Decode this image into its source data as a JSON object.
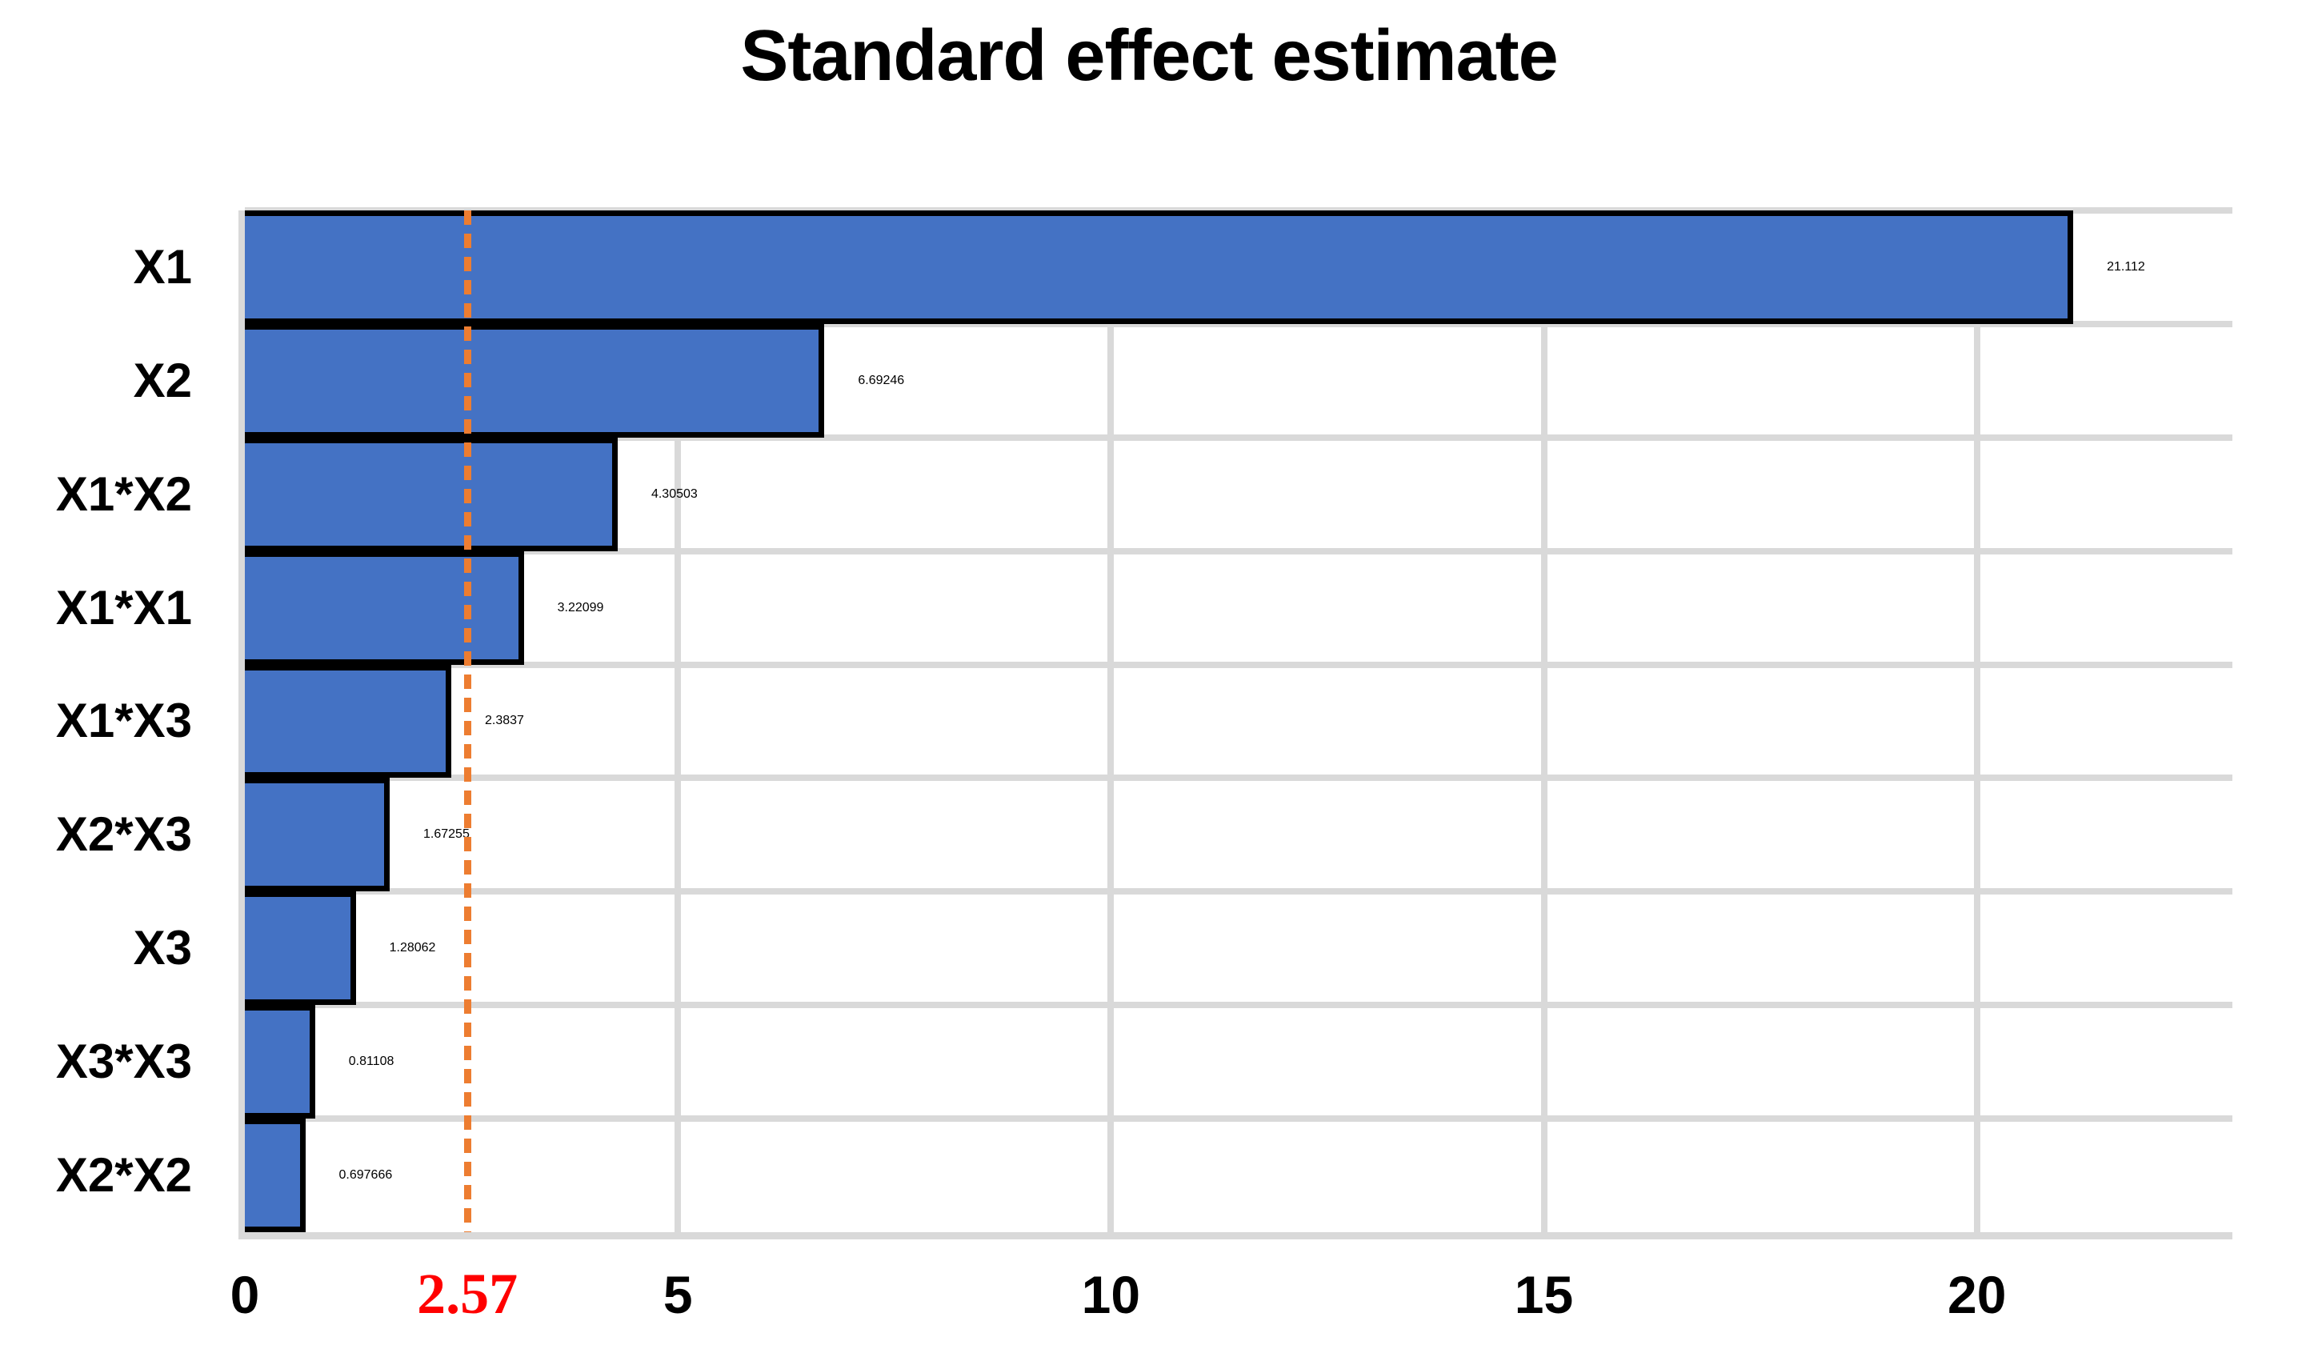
{
  "title": "Standard effect estimate",
  "chart_data": {
    "type": "bar",
    "orientation": "horizontal",
    "title": "Standard effect estimate",
    "categories": [
      "X1",
      "X2",
      "X1*X2",
      "X1*X1",
      "X1*X3",
      "X2*X3",
      "X3",
      "X3*X3",
      "X2*X2"
    ],
    "values": [
      21.112,
      6.69246,
      4.30503,
      3.22099,
      2.3837,
      1.67255,
      1.28062,
      0.81108,
      0.697666
    ],
    "value_labels": [
      "21.112",
      "6.69246",
      "4.30503",
      "3.22099",
      "2.3837",
      "1.67255",
      "1.28062",
      "0.81108",
      "0.697666"
    ],
    "x_tick_values": [
      0,
      5,
      10,
      15,
      20
    ],
    "x_tick_labels": [
      "0",
      "5",
      "10",
      "15",
      "20"
    ],
    "xlim": [
      0,
      22.95
    ],
    "grid": true,
    "legend_position": "none",
    "reference_line": {
      "value": 2.57,
      "label": "2.57",
      "style": "dashed",
      "line_color": "#ED7D31",
      "label_color": "#FF0000"
    },
    "colors": {
      "bar_fill": "#4472C4",
      "bar_border": "#000000",
      "gridline": "#D9D9D9",
      "text": "#000000",
      "background": "#FFFFFF"
    }
  }
}
